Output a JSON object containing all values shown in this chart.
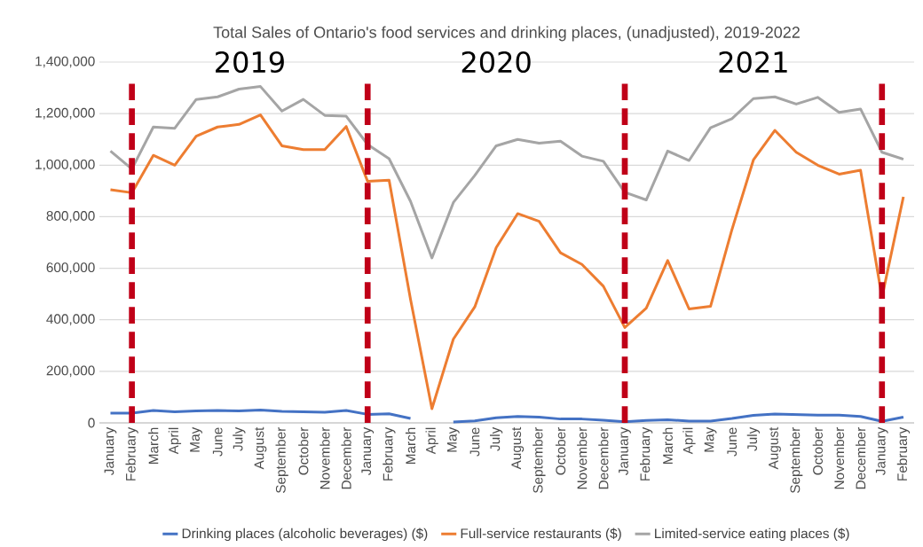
{
  "chart_data": {
    "type": "line",
    "title": "Total Sales of Ontario's food services and drinking places, (unadjusted), 2019-2022",
    "x": [
      "2019-01",
      "2019-02",
      "2019-03",
      "2019-04",
      "2019-05",
      "2019-06",
      "2019-07",
      "2019-08",
      "2019-09",
      "2019-10",
      "2019-11",
      "2019-12",
      "2020-01",
      "2020-02",
      "2020-03",
      "2020-04",
      "2020-05",
      "2020-06",
      "2020-07",
      "2020-08",
      "2020-09",
      "2020-10",
      "2020-11",
      "2020-12",
      "2021-01",
      "2021-02",
      "2021-03",
      "2021-04",
      "2021-05",
      "2021-06",
      "2021-07",
      "2021-08",
      "2021-09",
      "2021-10",
      "2021-11",
      "2021-12",
      "2022-01",
      "2022-02"
    ],
    "xlim": [
      "2018-12-16",
      "2022-02-15"
    ],
    "xticks": [
      {
        "value": "2019-01",
        "label": "January"
      },
      {
        "value": "2019-02",
        "label": "February"
      },
      {
        "value": "2019-03",
        "label": "March"
      },
      {
        "value": "2019-04",
        "label": "April"
      },
      {
        "value": "2019-05",
        "label": "May"
      },
      {
        "value": "2019-06",
        "label": "June"
      },
      {
        "value": "2019-07",
        "label": "July"
      },
      {
        "value": "2019-08",
        "label": "August"
      },
      {
        "value": "2019-09",
        "label": "September"
      },
      {
        "value": "2019-10",
        "label": "October"
      },
      {
        "value": "2019-11",
        "label": "November"
      },
      {
        "value": "2019-12",
        "label": "December"
      },
      {
        "value": "2020-01",
        "label": "January"
      },
      {
        "value": "2020-02",
        "label": "February"
      },
      {
        "value": "2020-03",
        "label": "March"
      },
      {
        "value": "2020-04",
        "label": "April"
      },
      {
        "value": "2020-05",
        "label": "May"
      },
      {
        "value": "2020-06",
        "label": "June"
      },
      {
        "value": "2020-07",
        "label": "July"
      },
      {
        "value": "2020-08",
        "label": "August"
      },
      {
        "value": "2020-09",
        "label": "September"
      },
      {
        "value": "2020-10",
        "label": "October"
      },
      {
        "value": "2020-11",
        "label": "November"
      },
      {
        "value": "2020-12",
        "label": "December"
      },
      {
        "value": "2021-01",
        "label": "January"
      },
      {
        "value": "2021-02",
        "label": "February"
      },
      {
        "value": "2021-03",
        "label": "March"
      },
      {
        "value": "2021-04",
        "label": "April"
      },
      {
        "value": "2021-05",
        "label": "May"
      },
      {
        "value": "2021-06",
        "label": "June"
      },
      {
        "value": "2021-07",
        "label": "July"
      },
      {
        "value": "2021-08",
        "label": "August"
      },
      {
        "value": "2021-09",
        "label": "September"
      },
      {
        "value": "2021-10",
        "label": "October"
      },
      {
        "value": "2021-11",
        "label": "November"
      },
      {
        "value": "2021-12",
        "label": "December"
      },
      {
        "value": "2022-01",
        "label": "January"
      },
      {
        "value": "2022-02",
        "label": "February"
      }
    ],
    "ylim": [
      0,
      1400000
    ],
    "yticks": [
      0,
      {
        "value": 200000,
        "label": "200,000"
      },
      {
        "value": 400000,
        "label": "400,000"
      },
      {
        "value": 600000,
        "label": "600,000"
      },
      {
        "value": 800000,
        "label": "800,000"
      },
      {
        "value": 1000000,
        "label": "1,000,000"
      },
      {
        "value": 1200000,
        "label": "1,200,000"
      },
      {
        "value": 1400000,
        "label": "1,400,000"
      }
    ],
    "grid": "y",
    "legend": "bottom",
    "marker": "none",
    "line_style": "solid",
    "series": [
      {
        "name": "Drinking places (alcoholic beverages) ($)",
        "color": "#4472c4",
        "values": [
          38000,
          38000,
          48000,
          43000,
          46000,
          48000,
          46000,
          50000,
          45000,
          43000,
          41000,
          48000,
          33000,
          35000,
          17000,
          null,
          3000,
          8000,
          20000,
          25000,
          22000,
          15000,
          15000,
          10000,
          4000,
          9000,
          12000,
          7000,
          7000,
          17000,
          29000,
          34000,
          32000,
          30000,
          30000,
          25000,
          6000,
          22000
        ]
      },
      {
        "name": "Full-service restaurants ($)",
        "color": "#ed7d31",
        "values": [
          905000,
          893000,
          1038000,
          1000000,
          1112000,
          1148000,
          1158000,
          1195000,
          1075000,
          1060000,
          1060000,
          1150000,
          937000,
          942000,
          480000,
          55000,
          325000,
          450000,
          680000,
          812000,
          782000,
          660000,
          615000,
          530000,
          370000,
          445000,
          630000,
          442000,
          452000,
          750000,
          1020000,
          1135000,
          1050000,
          1000000,
          965000,
          980000,
          487000,
          877000
        ]
      },
      {
        "name": "Limited-service eating places ($)",
        "color": "#a5a5a5",
        "values": [
          1055000,
          985000,
          1148000,
          1143000,
          1255000,
          1265000,
          1295000,
          1305000,
          1210000,
          1255000,
          1193000,
          1190000,
          1080000,
          1025000,
          860000,
          640000,
          855000,
          960000,
          1075000,
          1100000,
          1085000,
          1093000,
          1035000,
          1015000,
          895000,
          865000,
          1055000,
          1018000,
          1145000,
          1180000,
          1258000,
          1265000,
          1237000,
          1263000,
          1205000,
          1218000,
          1050000,
          1023000
        ]
      }
    ],
    "ref_lines": [
      {
        "axis": "x",
        "value": "2019-02",
        "color": "#c00018",
        "line_style": "dashed"
      },
      {
        "axis": "x",
        "value": "2020-01",
        "color": "#c00018",
        "line_style": "dashed"
      },
      {
        "axis": "x",
        "value": "2021-01",
        "color": "#c00018",
        "line_style": "dashed"
      },
      {
        "axis": "x",
        "value": "2022-01",
        "color": "#c00018",
        "line_style": "dashed"
      }
    ],
    "annotations": [
      "2019",
      "2020",
      "2021"
    ]
  }
}
